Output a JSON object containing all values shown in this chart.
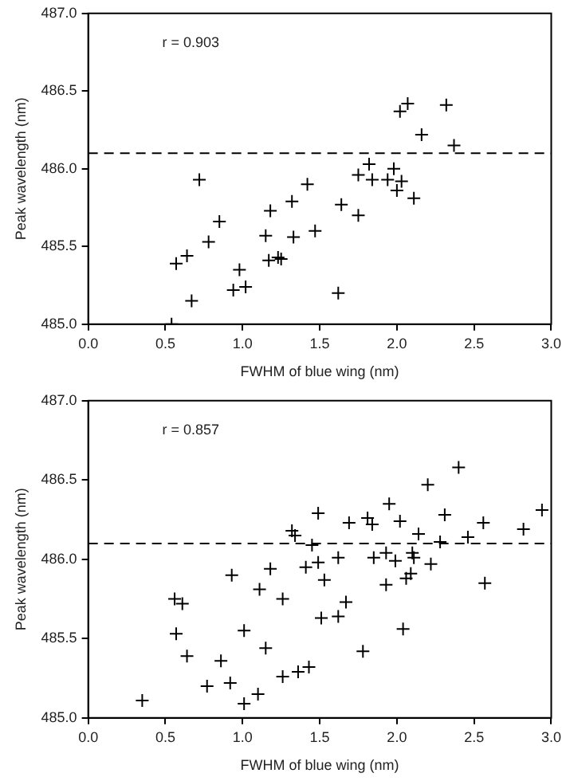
{
  "chart_data": [
    {
      "type": "scatter",
      "xlabel": "FWHM of blue wing (nm)",
      "ylabel": "Peak wavelength (nm)",
      "annotations": [
        "r = 0.903"
      ],
      "marker": "cross",
      "grid": false,
      "legend": false,
      "xlim": [
        0,
        3
      ],
      "xticks": [
        {
          "value": 0,
          "label": "0.0"
        },
        0.5,
        {
          "value": 1,
          "label": "1.0"
        },
        1.5,
        {
          "value": 2,
          "label": "2.0"
        },
        2.5,
        {
          "value": 3,
          "label": "3.0"
        }
      ],
      "ylim": [
        485,
        487
      ],
      "yticks": [
        {
          "value": 485,
          "label": "485.0"
        },
        {
          "value": 485.5,
          "label": "485.5"
        },
        {
          "value": 486,
          "label": "486.0"
        },
        {
          "value": 486.5,
          "label": "486.5"
        },
        {
          "value": 487,
          "label": "487.0"
        }
      ],
      "ref_lines": [
        {
          "axis": "y",
          "value": 486.1,
          "line_style": "dashed",
          "color": "#000000"
        }
      ],
      "series": [
        {
          "color": "#000000",
          "x": [
            0.54,
            0.57,
            0.64,
            0.67,
            0.72,
            0.78,
            0.85,
            0.94,
            0.98,
            1.02,
            1.15,
            1.17,
            1.18,
            1.23,
            1.25,
            1.32,
            1.33,
            1.42,
            1.47,
            1.62,
            1.64,
            1.75,
            1.75,
            1.82,
            1.84,
            1.94,
            1.98,
            2.0,
            2.03,
            2.02,
            2.07,
            2.11,
            2.16,
            2.32,
            2.37
          ],
          "values": [
            485.0,
            485.39,
            485.44,
            485.15,
            485.93,
            485.53,
            485.66,
            485.22,
            485.35,
            485.24,
            485.57,
            485.41,
            485.73,
            485.43,
            485.42,
            485.79,
            485.56,
            485.9,
            485.6,
            485.2,
            485.77,
            485.7,
            485.96,
            486.03,
            485.93,
            485.93,
            486.0,
            485.86,
            485.92,
            486.37,
            486.42,
            485.81,
            486.22,
            486.41,
            486.15
          ]
        }
      ]
    },
    {
      "type": "scatter",
      "xlabel": "FWHM of blue wing (nm)",
      "ylabel": "Peak wavelength (nm)",
      "annotations": [
        "r = 0.857"
      ],
      "marker": "cross",
      "grid": false,
      "legend": false,
      "xlim": [
        0,
        3
      ],
      "xticks": [
        {
          "value": 0,
          "label": "0.0"
        },
        0.5,
        {
          "value": 1,
          "label": "1.0"
        },
        1.5,
        {
          "value": 2,
          "label": "2.0"
        },
        2.5,
        {
          "value": 3,
          "label": "3.0"
        }
      ],
      "ylim": [
        485,
        487
      ],
      "yticks": [
        {
          "value": 485,
          "label": "485.0"
        },
        {
          "value": 485.5,
          "label": "485.5"
        },
        {
          "value": 486,
          "label": "486.0"
        },
        {
          "value": 486.5,
          "label": "486.5"
        },
        {
          "value": 487,
          "label": "487.0"
        }
      ],
      "ref_lines": [
        {
          "axis": "y",
          "value": 486.1,
          "line_style": "dashed",
          "color": "#000000"
        }
      ],
      "series": [
        {
          "color": "#000000",
          "x": [
            0.35,
            0.56,
            0.61,
            0.57,
            0.64,
            0.77,
            0.86,
            0.92,
            0.93,
            1.01,
            1.01,
            1.1,
            1.11,
            1.15,
            1.18,
            1.26,
            1.26,
            1.32,
            1.34,
            1.36,
            1.41,
            1.43,
            1.45,
            1.49,
            1.49,
            1.51,
            1.53,
            1.62,
            1.62,
            1.67,
            1.69,
            1.78,
            1.81,
            1.84,
            1.85,
            1.93,
            1.93,
            1.95,
            1.99,
            2.02,
            2.04,
            2.06,
            2.09,
            2.1,
            2.11,
            2.14,
            2.2,
            2.22,
            2.28,
            2.31,
            2.4,
            2.46,
            2.56,
            2.57,
            2.82,
            2.94
          ],
          "values": [
            485.11,
            485.75,
            485.72,
            485.53,
            485.39,
            485.2,
            485.36,
            485.22,
            485.9,
            485.55,
            485.09,
            485.15,
            485.81,
            485.44,
            485.94,
            485.75,
            485.26,
            486.18,
            486.15,
            485.29,
            485.95,
            485.32,
            486.09,
            486.29,
            485.98,
            485.63,
            485.87,
            486.01,
            485.64,
            485.73,
            486.23,
            485.42,
            486.26,
            486.22,
            486.01,
            486.04,
            485.84,
            486.35,
            485.99,
            486.24,
            485.56,
            485.88,
            485.91,
            486.04,
            486.01,
            486.16,
            486.47,
            485.97,
            486.11,
            486.28,
            486.58,
            486.14,
            486.23,
            485.85,
            486.19,
            486.31
          ]
        }
      ]
    }
  ]
}
